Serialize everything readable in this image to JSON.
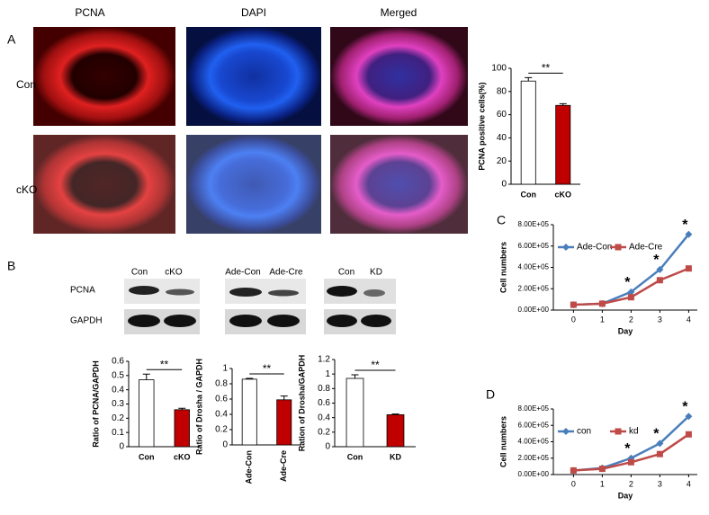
{
  "panels": {
    "A": {
      "label": "A",
      "columns": [
        "PCNA",
        "DAPI",
        "Merged"
      ],
      "rows": [
        "Con",
        "cKO"
      ]
    },
    "B": {
      "label": "B",
      "rows": [
        "PCNA",
        "GAPDH"
      ],
      "blots": [
        {
          "lanes": [
            "Con",
            "cKO"
          ]
        },
        {
          "lanes": [
            "Ade-Con",
            "Ade-Cre"
          ]
        },
        {
          "lanes": [
            "Con",
            "KD"
          ]
        }
      ]
    },
    "C": {
      "label": "C"
    },
    "D": {
      "label": "D"
    }
  },
  "chart_data": [
    {
      "type": "bar",
      "y_label": "PCNA positive cells(%)",
      "categories": [
        "Con",
        "cKO"
      ],
      "values": [
        89,
        68
      ],
      "errors": [
        3,
        1.5
      ],
      "colors": [
        "#ffffff",
        "#c00000"
      ],
      "ylim": [
        0,
        100
      ],
      "yticks": [
        0,
        20,
        40,
        60,
        80,
        100
      ],
      "annotation": "**"
    },
    {
      "type": "bar",
      "y_label": "Ratio of PCNA/GAPDH",
      "categories": [
        "Con",
        "cKO"
      ],
      "values": [
        0.47,
        0.26
      ],
      "errors": [
        0.04,
        0.01
      ],
      "colors": [
        "#ffffff",
        "#c00000"
      ],
      "ylim": [
        0,
        0.6
      ],
      "yticks": [
        0,
        0.1,
        0.2,
        0.3,
        0.4,
        0.5,
        0.6
      ],
      "annotation": "**"
    },
    {
      "type": "bar",
      "y_label": "Ratio of Drosha / GAPDH",
      "categories": [
        "Ade-Con",
        "Ade-Cre"
      ],
      "values": [
        0.86,
        0.59
      ],
      "errors": [
        0.01,
        0.05
      ],
      "colors": [
        "#ffffff",
        "#c00000"
      ],
      "ylim": [
        0,
        1
      ],
      "yticks": [
        0,
        0.2,
        0.4,
        0.6,
        0.8,
        1
      ],
      "annotation": "**"
    },
    {
      "type": "bar",
      "y_label": "Ration of Drosha/GAPDH",
      "categories": [
        "Con",
        "KD"
      ],
      "values": [
        0.94,
        0.44
      ],
      "errors": [
        0.05,
        0.01
      ],
      "colors": [
        "#ffffff",
        "#c00000"
      ],
      "ylim": [
        0,
        1.2
      ],
      "yticks": [
        0,
        0.2,
        0.4,
        0.6,
        0.8,
        1,
        1.2
      ],
      "annotation": "**"
    },
    {
      "type": "line",
      "y_label": "Cell numbers",
      "x_label": "Day",
      "x": [
        0,
        1,
        2,
        3,
        4
      ],
      "xlim": [
        -0.7,
        4.3
      ],
      "xticks": [
        0,
        1,
        2,
        3,
        4
      ],
      "ylim": [
        0,
        800000
      ],
      "yticks": [
        {
          "value": 0,
          "label": "0.00E+00"
        },
        {
          "value": 200000,
          "label": "2.00E+05"
        },
        {
          "value": 400000,
          "label": "4.00E+05"
        },
        {
          "value": 600000,
          "label": "6.00E+05"
        },
        {
          "value": 800000,
          "label": "8.00E+05"
        }
      ],
      "legend": "top-left",
      "series": [
        {
          "name": "Ade-Con",
          "color": "#4a7ebb",
          "marker": "diamond",
          "values": [
            50000,
            60000,
            170000,
            380000,
            710000
          ]
        },
        {
          "name": "Ade-Cre",
          "color": "#be4b48",
          "marker": "square",
          "values": [
            50000,
            60000,
            120000,
            280000,
            390000
          ]
        }
      ],
      "annotations": [
        {
          "text": "*",
          "x": 2
        },
        {
          "text": "*",
          "x": 3
        },
        {
          "text": "*",
          "x": 4
        }
      ]
    },
    {
      "type": "line",
      "y_label": "Cell numbers",
      "x_label": "Day",
      "x": [
        0,
        1,
        2,
        3,
        4
      ],
      "xlim": [
        -0.7,
        4.3
      ],
      "xticks": [
        0,
        1,
        2,
        3,
        4
      ],
      "ylim": [
        0,
        800000
      ],
      "yticks": [
        {
          "value": 0,
          "label": "0.00E+00"
        },
        {
          "value": 200000,
          "label": "2.00E+05"
        },
        {
          "value": 400000,
          "label": "4.00E+05"
        },
        {
          "value": 600000,
          "label": "6.00E+05"
        },
        {
          "value": 800000,
          "label": "8.00E+05"
        }
      ],
      "legend": "top-left",
      "series": [
        {
          "name": "con",
          "color": "#4a7ebb",
          "marker": "diamond",
          "values": [
            50000,
            80000,
            200000,
            380000,
            710000
          ]
        },
        {
          "name": "kd",
          "color": "#be4b48",
          "marker": "square",
          "values": [
            50000,
            70000,
            150000,
            250000,
            490000
          ]
        }
      ],
      "annotations": [
        {
          "text": "*",
          "x": 2
        },
        {
          "text": "*",
          "x": 3
        },
        {
          "text": "*",
          "x": 4
        }
      ]
    }
  ]
}
